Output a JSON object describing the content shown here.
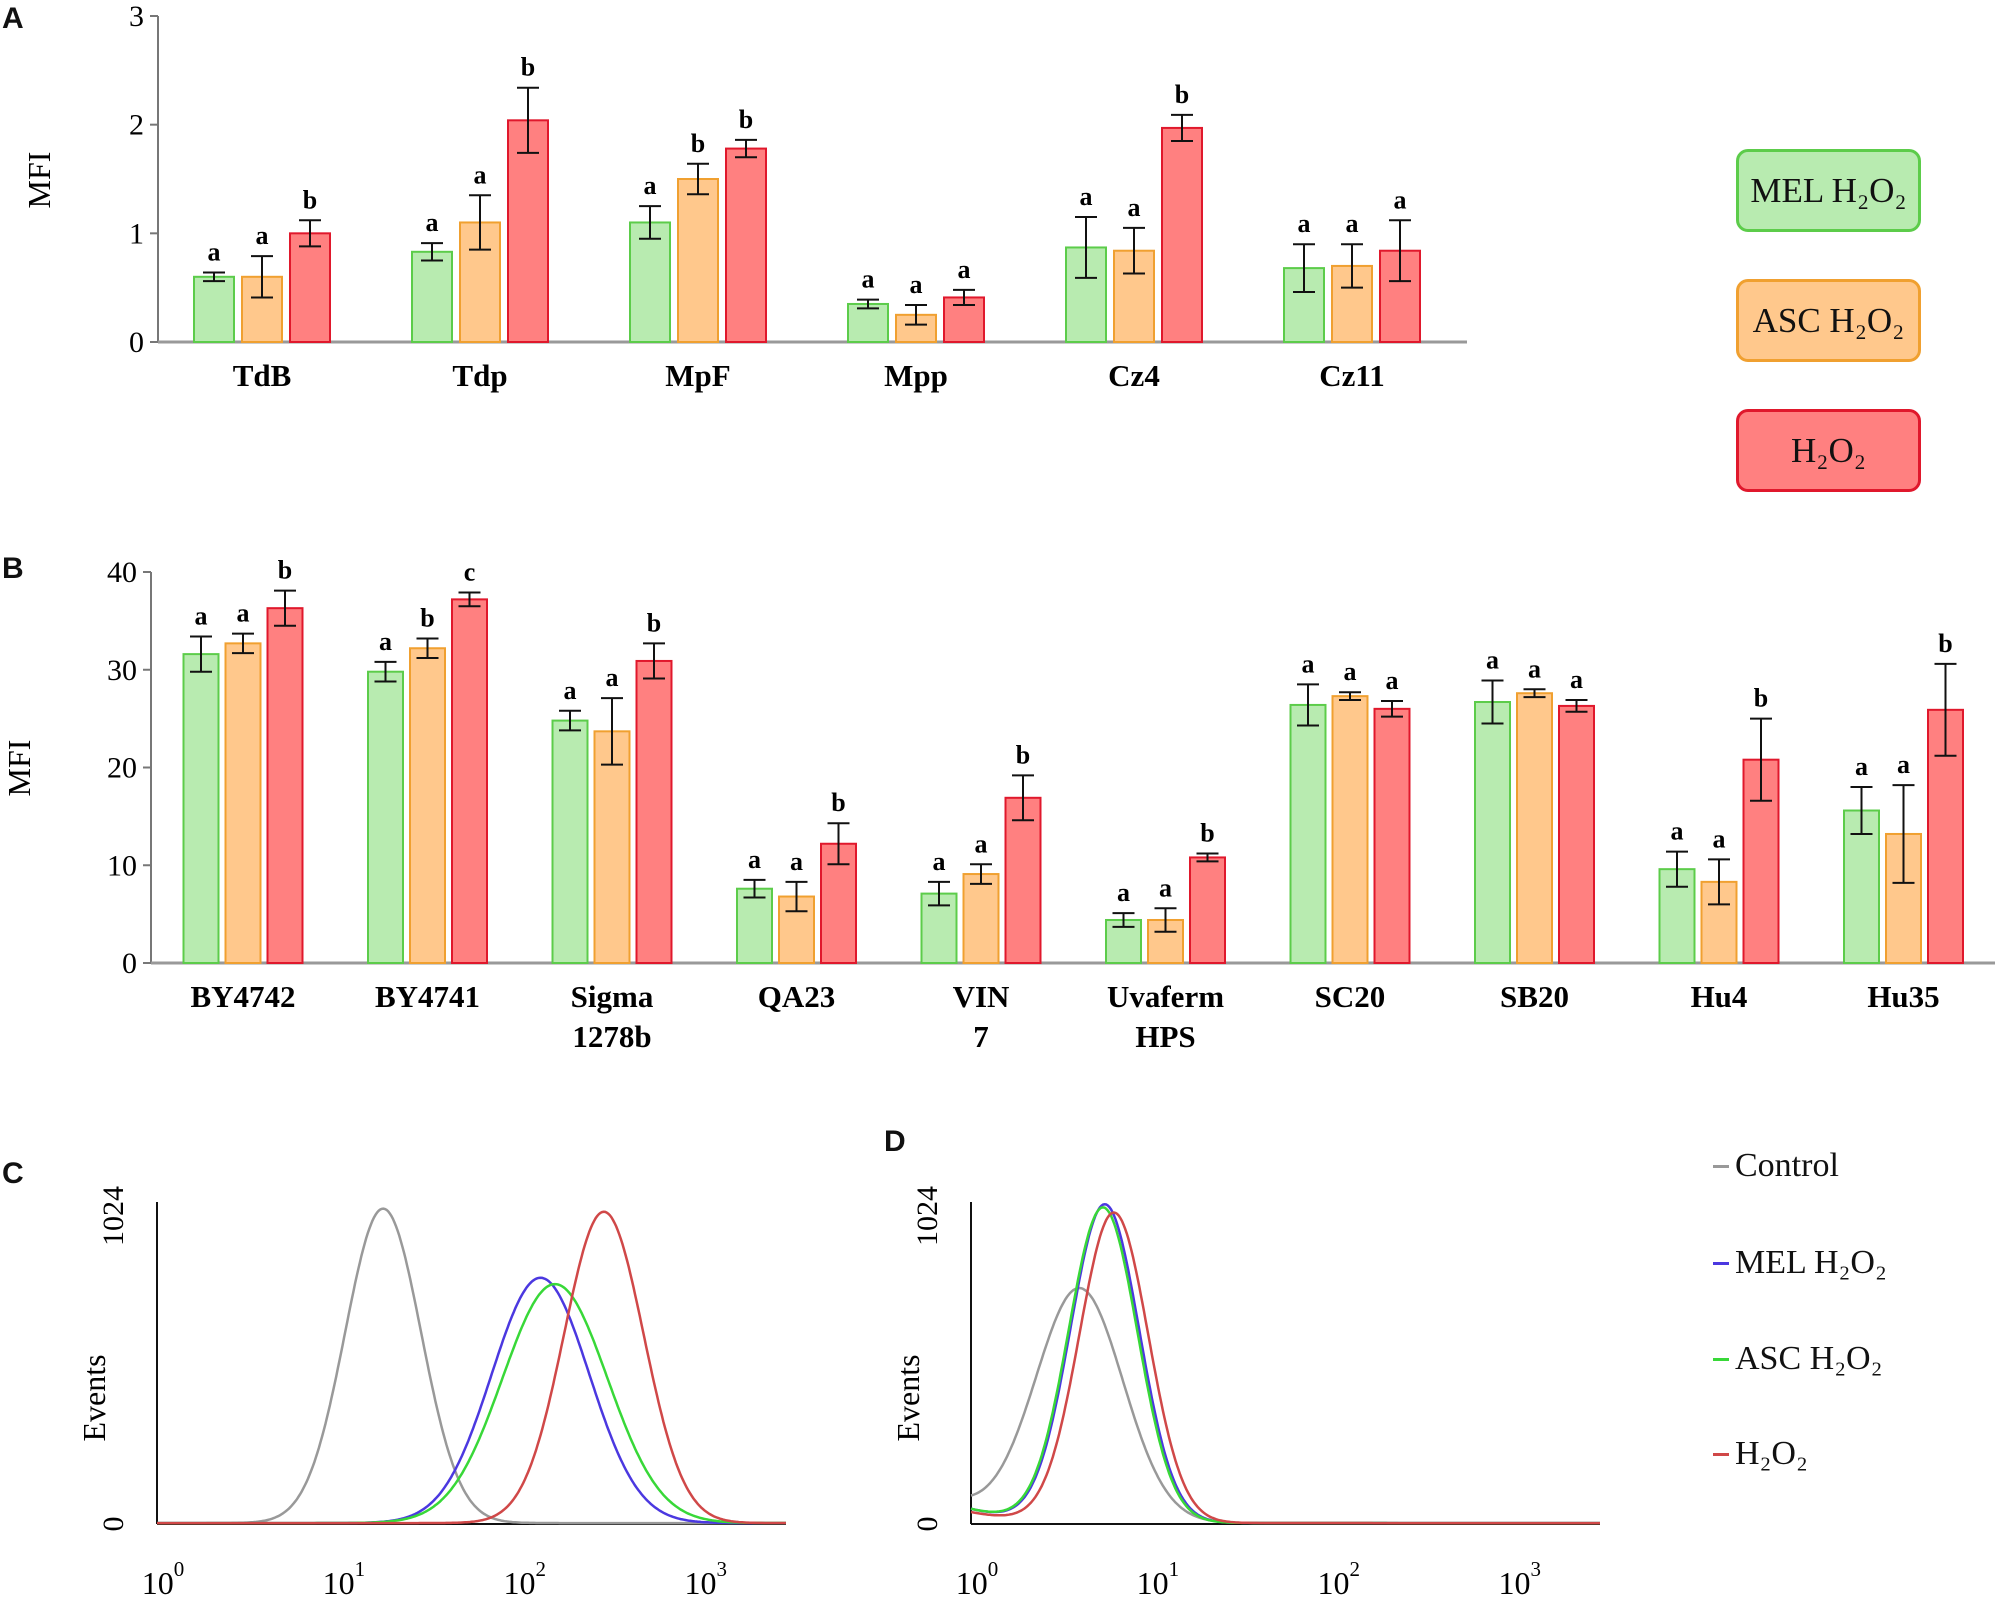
{
  "panels": {
    "a": "A",
    "b": "B",
    "c": "C",
    "d": "D"
  },
  "colors": {
    "mel": {
      "fill": "#b8ebb0",
      "stroke": "#5ccc4a"
    },
    "asc": {
      "fill": "#ffc88c",
      "stroke": "#f0a030"
    },
    "h2o2": {
      "fill": "#ff8080",
      "stroke": "#e0182c"
    },
    "control_line": "#999999",
    "mel_line": "#4b38e0",
    "asc_line": "#38d838",
    "h2o2_line": "#d04848"
  },
  "legend_bars": {
    "mel": "MEL H₂O₂",
    "asc": "ASC H₂O₂",
    "h2o2": "H₂O₂"
  },
  "legend_lines": {
    "control": "Control",
    "mel": "MEL H₂O₂",
    "asc": "ASC H₂O₂",
    "h2o2": "H₂O₂"
  },
  "chart_data": [
    {
      "id": "A",
      "type": "bar",
      "ylabel": "MFI",
      "ylim": [
        0,
        3
      ],
      "yticks": [
        0,
        1,
        2,
        3
      ],
      "categories": [
        "TdB",
        "Tdp",
        "MpF",
        "Mpp",
        "Cz4",
        "Cz11"
      ],
      "series": [
        {
          "name": "MEL H₂O₂",
          "values": [
            0.6,
            0.83,
            1.1,
            0.35,
            0.87,
            0.68
          ],
          "errors": [
            0.04,
            0.08,
            0.15,
            0.04,
            0.28,
            0.22
          ],
          "letters": [
            "a",
            "a",
            "a",
            "a",
            "a",
            "a"
          ]
        },
        {
          "name": "ASC H₂O₂",
          "values": [
            0.6,
            1.1,
            1.5,
            0.25,
            0.84,
            0.7
          ],
          "errors": [
            0.19,
            0.25,
            0.14,
            0.09,
            0.21,
            0.2
          ],
          "letters": [
            "a",
            "a",
            "b",
            "a",
            "a",
            "a"
          ]
        },
        {
          "name": "H₂O₂",
          "values": [
            1.0,
            2.04,
            1.78,
            0.41,
            1.97,
            0.84
          ],
          "errors": [
            0.12,
            0.3,
            0.08,
            0.07,
            0.12,
            0.28
          ],
          "letters": [
            "b",
            "b",
            "b",
            "a",
            "b",
            "a"
          ]
        }
      ]
    },
    {
      "id": "B",
      "type": "bar",
      "ylabel": "MFI",
      "ylim": [
        0,
        40
      ],
      "yticks": [
        0,
        10,
        20,
        30,
        40
      ],
      "categories": [
        "BY4742",
        "BY4741",
        "Sigma 1278b",
        "QA23",
        "VIN 7",
        "Uvaferm HPS",
        "SC20",
        "SB20",
        "Hu4",
        "Hu35"
      ],
      "series": [
        {
          "name": "MEL H₂O₂",
          "values": [
            31.6,
            29.8,
            24.8,
            7.6,
            7.1,
            4.4,
            26.4,
            26.7,
            9.6,
            15.6
          ],
          "errors": [
            1.8,
            1.0,
            1.0,
            0.9,
            1.2,
            0.7,
            2.1,
            2.2,
            1.8,
            2.4
          ],
          "letters": [
            "a",
            "a",
            "a",
            "a",
            "a",
            "a",
            "a",
            "a",
            "a",
            "a"
          ]
        },
        {
          "name": "ASC H₂O₂",
          "values": [
            32.7,
            32.2,
            23.7,
            6.8,
            9.1,
            4.4,
            27.3,
            27.6,
            8.3,
            13.2
          ],
          "errors": [
            1.0,
            1.0,
            3.4,
            1.5,
            1.0,
            1.2,
            0.4,
            0.4,
            2.3,
            5.0
          ],
          "letters": [
            "a",
            "b",
            "a",
            "a",
            "a",
            "a",
            "a",
            "a",
            "a",
            "a"
          ]
        },
        {
          "name": "H₂O₂",
          "values": [
            36.3,
            37.2,
            30.9,
            12.2,
            16.9,
            10.8,
            26.0,
            26.3,
            20.8,
            25.9
          ],
          "errors": [
            1.8,
            0.7,
            1.8,
            2.1,
            2.3,
            0.4,
            0.8,
            0.6,
            4.2,
            4.7
          ],
          "letters": [
            "b",
            "c",
            "b",
            "b",
            "b",
            "b",
            "a",
            "a",
            "b",
            "b"
          ]
        }
      ]
    },
    {
      "id": "C",
      "type": "line",
      "ylabel": "Events",
      "ylim": [
        0,
        1024
      ],
      "ytick_labels": [
        "0",
        "1024"
      ],
      "x_scale": "log",
      "xlim": [
        1,
        3000
      ],
      "xticks": [
        {
          "base": "10",
          "exp": "0"
        },
        {
          "base": "10",
          "exp": "1"
        },
        {
          "base": "10",
          "exp": "2"
        },
        {
          "base": "10",
          "exp": "3"
        }
      ],
      "series": [
        {
          "name": "Control",
          "mu": 1.25,
          "sigma": 0.21,
          "peak": 1000,
          "tail": 0
        },
        {
          "name": "MEL H₂O₂",
          "mu": 2.12,
          "sigma": 0.27,
          "peak": 780,
          "tail": 0
        },
        {
          "name": "ASC H₂O₂",
          "mu": 2.2,
          "sigma": 0.29,
          "peak": 760,
          "tail": 0
        },
        {
          "name": "H₂O₂",
          "mu": 2.47,
          "sigma": 0.22,
          "peak": 990,
          "tail": 0
        }
      ]
    },
    {
      "id": "D",
      "type": "line",
      "ylabel": "Events",
      "ylim": [
        0,
        1024
      ],
      "ytick_labels": [
        "0",
        "1024"
      ],
      "x_scale": "log",
      "xlim": [
        1,
        3000
      ],
      "xticks": [
        {
          "base": "10",
          "exp": "0"
        },
        {
          "base": "10",
          "exp": "1"
        },
        {
          "base": "10",
          "exp": "2"
        },
        {
          "base": "10",
          "exp": "3"
        }
      ],
      "series": [
        {
          "name": "Control",
          "mu": 0.6,
          "sigma": 0.24,
          "peak": 740,
          "tail": 55
        },
        {
          "name": "MEL H₂O₂",
          "mu": 0.74,
          "sigma": 0.19,
          "peak": 1010,
          "tail": 45
        },
        {
          "name": "ASC H₂O₂",
          "mu": 0.73,
          "sigma": 0.19,
          "peak": 1000,
          "tail": 45
        },
        {
          "name": "H₂O₂",
          "mu": 0.79,
          "sigma": 0.19,
          "peak": 985,
          "tail": 35
        }
      ]
    }
  ]
}
